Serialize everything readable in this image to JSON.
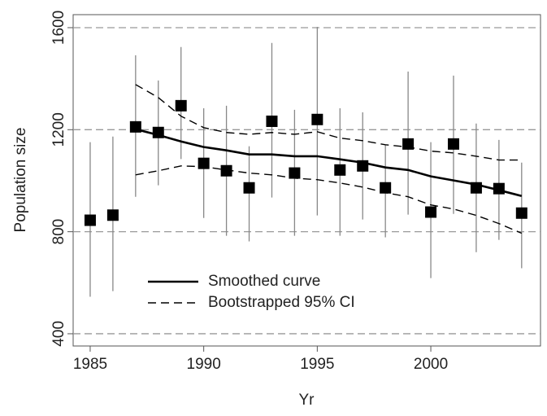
{
  "chart_data": {
    "type": "scatter",
    "xlabel": "Yr",
    "ylabel": "Population size",
    "xlim": [
      1984.25,
      2004.83
    ],
    "ylim": [
      352,
      1651
    ],
    "xticks": [
      1985,
      1990,
      1995,
      2000
    ],
    "yticks": [
      400,
      800,
      1200,
      1600
    ],
    "grid": true,
    "grid_color": "#999999",
    "marker_color": "#000000",
    "errorbar_color": "#888888",
    "x": [
      1985,
      1986,
      1987,
      1988,
      1989,
      1990,
      1991,
      1992,
      1993,
      1994,
      1995,
      1996,
      1997,
      1998,
      1999,
      2000,
      2001,
      2002,
      2003,
      2004
    ],
    "values": [
      845,
      865,
      1211,
      1189,
      1294,
      1068,
      1039,
      972,
      1233,
      1030,
      1240,
      1042,
      1058,
      972,
      1144,
      877,
      1144,
      972,
      969,
      873
    ],
    "lower": [
      545,
      567,
      937,
      982,
      1085,
      854,
      784,
      762,
      934,
      784,
      864,
      784,
      848,
      778,
      867,
      618,
      870,
      720,
      768,
      657
    ],
    "upper": [
      1151,
      1173,
      1492,
      1393,
      1524,
      1284,
      1294,
      1135,
      1540,
      1278,
      1603,
      1284,
      1268,
      1141,
      1428,
      1151,
      1412,
      1224,
      1160,
      1071
    ],
    "series": [
      {
        "name": "Smoothed curve",
        "color": "#000000",
        "dashed": false,
        "x": [
          1987,
          1988,
          1989,
          1990,
          1991,
          1992,
          1993,
          1994,
          1995,
          1996,
          1997,
          1998,
          1999,
          2000,
          2001,
          2002,
          2003,
          2004
        ],
        "values": [
          1202,
          1179,
          1154,
          1132,
          1119,
          1103,
          1103,
          1096,
          1096,
          1084,
          1071,
          1052,
          1042,
          1017,
          1001,
          985,
          963,
          940
        ]
      },
      {
        "name": "Bootstrapped 95% CI",
        "color": "#000000",
        "dashed": true,
        "x": [
          1987,
          1988,
          1989,
          1990,
          1991,
          1992,
          1993,
          1994,
          1995,
          1996,
          1997,
          1998,
          1999,
          2000,
          2001,
          2002,
          2003,
          2004
        ],
        "upper": [
          1377,
          1326,
          1253,
          1208,
          1189,
          1182,
          1189,
          1182,
          1192,
          1167,
          1157,
          1141,
          1132,
          1116,
          1109,
          1096,
          1081,
          1081
        ],
        "lower": [
          1023,
          1039,
          1058,
          1055,
          1042,
          1030,
          1023,
          1010,
          1004,
          991,
          975,
          953,
          937,
          905,
          889,
          864,
          832,
          794
        ]
      }
    ]
  }
}
